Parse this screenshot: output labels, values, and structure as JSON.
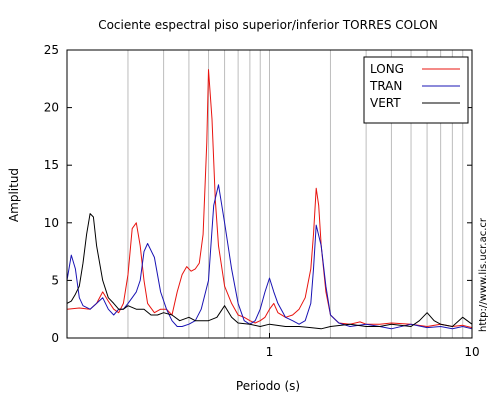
{
  "chart_data": {
    "type": "line",
    "title": "Cociente espectral piso superior/inferior  TORRES COLON",
    "xlabel": "Periodo (s)",
    "ylabel": "Amplitud",
    "xscale": "log",
    "xlim": [
      0.1,
      10
    ],
    "ylim": [
      0,
      25
    ],
    "xticks": [
      1,
      10
    ],
    "xtick_labels": [
      "1",
      "10"
    ],
    "yticks": [
      0,
      5,
      10,
      15,
      20,
      25
    ],
    "ytick_labels": [
      "0",
      "5",
      "10",
      "15",
      "20",
      "25"
    ],
    "grid": "vertical lines at log decades minor ticks",
    "legend_position": "top-right",
    "credit": "http://www.lis.ucr.ac.cr",
    "series": [
      {
        "name": "LONG",
        "color": "#e8140f",
        "x": [
          0.1,
          0.115,
          0.13,
          0.14,
          0.15,
          0.16,
          0.17,
          0.18,
          0.19,
          0.2,
          0.21,
          0.22,
          0.23,
          0.24,
          0.25,
          0.27,
          0.29,
          0.31,
          0.33,
          0.35,
          0.37,
          0.39,
          0.41,
          0.43,
          0.45,
          0.47,
          0.49,
          0.5,
          0.52,
          0.54,
          0.56,
          0.6,
          0.65,
          0.7,
          0.75,
          0.8,
          0.85,
          0.9,
          0.95,
          1.0,
          1.05,
          1.1,
          1.2,
          1.3,
          1.4,
          1.5,
          1.6,
          1.65,
          1.7,
          1.75,
          1.8,
          1.9,
          2.0,
          2.2,
          2.5,
          2.8,
          3.0,
          3.5,
          4.0,
          5.0,
          6.0,
          7.0,
          8.0,
          9.0,
          10.0
        ],
        "y": [
          2.5,
          2.6,
          2.5,
          3.0,
          4.0,
          3.2,
          2.5,
          2.2,
          3.0,
          5.5,
          9.5,
          10.0,
          8.0,
          5.0,
          3.0,
          2.2,
          2.5,
          2.5,
          2.0,
          4.0,
          5.5,
          6.2,
          5.8,
          6.0,
          6.5,
          9.0,
          17.0,
          23.3,
          19.0,
          12.0,
          8.0,
          4.5,
          3.0,
          2.0,
          1.8,
          1.5,
          1.3,
          1.5,
          1.8,
          2.5,
          3.0,
          2.2,
          1.8,
          2.0,
          2.5,
          3.5,
          6.0,
          9.0,
          13.0,
          11.5,
          8.0,
          4.0,
          2.0,
          1.3,
          1.2,
          1.4,
          1.2,
          1.2,
          1.3,
          1.2,
          1.0,
          1.2,
          1.0,
          1.1,
          0.9
        ]
      },
      {
        "name": "TRAN",
        "color": "#1a14b4",
        "x": [
          0.1,
          0.105,
          0.11,
          0.115,
          0.12,
          0.13,
          0.14,
          0.15,
          0.16,
          0.17,
          0.18,
          0.19,
          0.2,
          0.21,
          0.22,
          0.23,
          0.24,
          0.25,
          0.27,
          0.29,
          0.31,
          0.33,
          0.35,
          0.37,
          0.4,
          0.43,
          0.46,
          0.5,
          0.53,
          0.56,
          0.6,
          0.65,
          0.7,
          0.75,
          0.8,
          0.85,
          0.9,
          0.95,
          1.0,
          1.05,
          1.1,
          1.2,
          1.3,
          1.4,
          1.5,
          1.6,
          1.65,
          1.7,
          1.8,
          1.9,
          2.0,
          2.2,
          2.5,
          3.0,
          3.5,
          4.0,
          5.0,
          6.0,
          7.0,
          8.0,
          9.0,
          10.0
        ],
        "y": [
          5.0,
          7.2,
          6.0,
          3.5,
          2.8,
          2.5,
          3.0,
          3.5,
          2.5,
          2.0,
          2.5,
          2.5,
          3.0,
          3.5,
          4.0,
          5.0,
          7.5,
          8.2,
          7.0,
          4.0,
          2.5,
          1.5,
          1.0,
          1.0,
          1.2,
          1.5,
          2.5,
          5.0,
          11.5,
          13.3,
          10.0,
          6.0,
          3.0,
          1.5,
          1.2,
          1.5,
          2.5,
          4.0,
          5.2,
          4.0,
          3.0,
          1.8,
          1.5,
          1.2,
          1.5,
          3.0,
          6.0,
          9.8,
          8.0,
          4.5,
          2.0,
          1.3,
          1.0,
          1.2,
          1.0,
          0.8,
          1.2,
          0.9,
          1.0,
          0.8,
          1.0,
          0.8
        ]
      },
      {
        "name": "VERT",
        "color": "#000000",
        "x": [
          0.1,
          0.105,
          0.11,
          0.115,
          0.12,
          0.125,
          0.13,
          0.135,
          0.14,
          0.15,
          0.16,
          0.17,
          0.18,
          0.19,
          0.2,
          0.22,
          0.24,
          0.26,
          0.28,
          0.3,
          0.33,
          0.36,
          0.4,
          0.43,
          0.46,
          0.5,
          0.55,
          0.6,
          0.65,
          0.7,
          0.8,
          0.9,
          1.0,
          1.2,
          1.4,
          1.6,
          1.8,
          2.0,
          2.5,
          3.0,
          3.5,
          4.0,
          5.0,
          5.5,
          6.0,
          6.5,
          7.0,
          8.0,
          9.0,
          10.0
        ],
        "y": [
          3.0,
          3.2,
          3.8,
          4.5,
          6.5,
          9.0,
          10.8,
          10.5,
          8.0,
          5.0,
          3.5,
          3.0,
          2.5,
          2.5,
          2.8,
          2.5,
          2.5,
          2.0,
          2.0,
          2.2,
          2.0,
          1.5,
          1.8,
          1.5,
          1.5,
          1.5,
          1.8,
          2.8,
          1.8,
          1.3,
          1.2,
          1.0,
          1.2,
          1.0,
          1.0,
          0.9,
          0.8,
          1.0,
          1.2,
          1.0,
          1.0,
          1.2,
          1.0,
          1.5,
          2.2,
          1.5,
          1.2,
          1.0,
          1.8,
          1.2
        ]
      }
    ]
  }
}
